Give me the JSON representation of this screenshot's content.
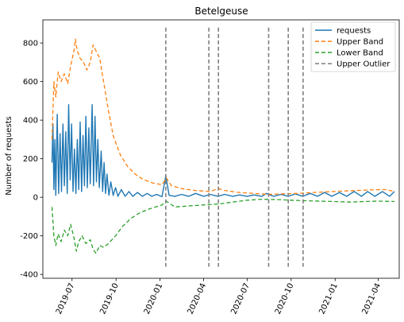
{
  "chart_data": {
    "type": "line",
    "title": "Betelgeuse",
    "xlabel": "",
    "ylabel": "Number of requests",
    "xlim": [
      "2019-05-01",
      "2021-05-15"
    ],
    "ylim": [
      -420,
      920
    ],
    "x_ticks": [
      "2019-07",
      "2019-10",
      "2020-01",
      "2020-04",
      "2020-07",
      "2020-10",
      "2021-01",
      "2021-04"
    ],
    "y_ticks": [
      -400,
      -200,
      0,
      200,
      400,
      600,
      800
    ],
    "legend_position": "top-right",
    "grid": false,
    "series": [
      {
        "name": "requests",
        "style": "solid",
        "color": "#1f77b4",
        "points": [
          [
            "2019-05-20",
            180
          ],
          [
            "2019-05-22",
            380
          ],
          [
            "2019-05-24",
            40
          ],
          [
            "2019-05-26",
            300
          ],
          [
            "2019-05-28",
            10
          ],
          [
            "2019-05-31",
            430
          ],
          [
            "2019-06-03",
            20
          ],
          [
            "2019-06-06",
            330
          ],
          [
            "2019-06-09",
            30
          ],
          [
            "2019-06-12",
            380
          ],
          [
            "2019-06-15",
            60
          ],
          [
            "2019-06-18",
            340
          ],
          [
            "2019-06-21",
            20
          ],
          [
            "2019-06-24",
            480
          ],
          [
            "2019-06-27",
            90
          ],
          [
            "2019-06-30",
            380
          ],
          [
            "2019-07-03",
            30
          ],
          [
            "2019-07-06",
            250
          ],
          [
            "2019-07-09",
            20
          ],
          [
            "2019-07-12",
            300
          ],
          [
            "2019-07-15",
            40
          ],
          [
            "2019-07-18",
            390
          ],
          [
            "2019-07-21",
            30
          ],
          [
            "2019-07-24",
            320
          ],
          [
            "2019-07-27",
            60
          ],
          [
            "2019-07-30",
            420
          ],
          [
            "2019-08-02",
            50
          ],
          [
            "2019-08-05",
            360
          ],
          [
            "2019-08-08",
            70
          ],
          [
            "2019-08-12",
            480
          ],
          [
            "2019-08-15",
            60
          ],
          [
            "2019-08-18",
            420
          ],
          [
            "2019-08-21",
            80
          ],
          [
            "2019-08-24",
            300
          ],
          [
            "2019-08-27",
            50
          ],
          [
            "2019-08-31",
            240
          ],
          [
            "2019-09-03",
            30
          ],
          [
            "2019-09-06",
            180
          ],
          [
            "2019-09-09",
            20
          ],
          [
            "2019-09-12",
            120
          ],
          [
            "2019-09-16",
            10
          ],
          [
            "2019-09-20",
            80
          ],
          [
            "2019-09-25",
            10
          ],
          [
            "2019-09-30",
            50
          ],
          [
            "2019-10-05",
            5
          ],
          [
            "2019-10-12",
            40
          ],
          [
            "2019-10-20",
            5
          ],
          [
            "2019-10-28",
            30
          ],
          [
            "2019-11-05",
            5
          ],
          [
            "2019-11-15",
            25
          ],
          [
            "2019-11-25",
            5
          ],
          [
            "2019-12-05",
            20
          ],
          [
            "2019-12-15",
            5
          ],
          [
            "2019-12-25",
            15
          ],
          [
            "2020-01-05",
            3
          ],
          [
            "2020-01-13",
            110
          ],
          [
            "2020-01-20",
            10
          ],
          [
            "2020-02-01",
            5
          ],
          [
            "2020-02-15",
            15
          ],
          [
            "2020-03-01",
            5
          ],
          [
            "2020-03-15",
            20
          ],
          [
            "2020-04-01",
            5
          ],
          [
            "2020-04-15",
            15
          ],
          [
            "2020-05-01",
            5
          ],
          [
            "2020-05-15",
            15
          ],
          [
            "2020-06-01",
            5
          ],
          [
            "2020-06-15",
            12
          ],
          [
            "2020-07-01",
            5
          ],
          [
            "2020-07-15",
            12
          ],
          [
            "2020-08-01",
            5
          ],
          [
            "2020-08-10",
            20
          ],
          [
            "2020-08-25",
            5
          ],
          [
            "2020-09-10",
            15
          ],
          [
            "2020-09-25",
            5
          ],
          [
            "2020-10-10",
            18
          ],
          [
            "2020-10-25",
            5
          ],
          [
            "2020-11-10",
            20
          ],
          [
            "2020-11-25",
            5
          ],
          [
            "2020-12-10",
            25
          ],
          [
            "2020-12-25",
            5
          ],
          [
            "2021-01-10",
            25
          ],
          [
            "2021-01-25",
            5
          ],
          [
            "2021-02-10",
            30
          ],
          [
            "2021-02-25",
            5
          ],
          [
            "2021-03-10",
            30
          ],
          [
            "2021-03-25",
            5
          ],
          [
            "2021-04-10",
            30
          ],
          [
            "2021-04-25",
            5
          ],
          [
            "2021-05-05",
            30
          ]
        ]
      },
      {
        "name": "Upper Band",
        "style": "dashed",
        "color": "#ff7f0e",
        "points": [
          [
            "2019-05-20",
            300
          ],
          [
            "2019-05-24",
            600
          ],
          [
            "2019-05-28",
            520
          ],
          [
            "2019-06-02",
            650
          ],
          [
            "2019-06-08",
            600
          ],
          [
            "2019-06-15",
            640
          ],
          [
            "2019-06-22",
            590
          ],
          [
            "2019-06-28",
            680
          ],
          [
            "2019-07-05",
            760
          ],
          [
            "2019-07-08",
            820
          ],
          [
            "2019-07-12",
            760
          ],
          [
            "2019-07-18",
            720
          ],
          [
            "2019-07-25",
            700
          ],
          [
            "2019-08-01",
            660
          ],
          [
            "2019-08-08",
            700
          ],
          [
            "2019-08-14",
            790
          ],
          [
            "2019-08-20",
            760
          ],
          [
            "2019-08-28",
            720
          ],
          [
            "2019-09-05",
            600
          ],
          [
            "2019-09-15",
            450
          ],
          [
            "2019-09-25",
            320
          ],
          [
            "2019-10-10",
            220
          ],
          [
            "2019-10-25",
            160
          ],
          [
            "2019-11-10",
            120
          ],
          [
            "2019-11-25",
            95
          ],
          [
            "2019-12-15",
            75
          ],
          [
            "2020-01-05",
            65
          ],
          [
            "2020-01-14",
            100
          ],
          [
            "2020-01-25",
            60
          ],
          [
            "2020-02-15",
            45
          ],
          [
            "2020-03-15",
            35
          ],
          [
            "2020-04-15",
            30
          ],
          [
            "2020-05-01",
            45
          ],
          [
            "2020-05-15",
            35
          ],
          [
            "2020-06-15",
            25
          ],
          [
            "2020-07-15",
            20
          ],
          [
            "2020-08-15",
            15
          ],
          [
            "2020-09-15",
            18
          ],
          [
            "2020-10-15",
            20
          ],
          [
            "2020-11-15",
            25
          ],
          [
            "2020-12-15",
            28
          ],
          [
            "2021-01-15",
            32
          ],
          [
            "2021-02-15",
            35
          ],
          [
            "2021-03-15",
            38
          ],
          [
            "2021-04-15",
            40
          ],
          [
            "2021-05-05",
            30
          ]
        ]
      },
      {
        "name": "Lower Band",
        "style": "dashed",
        "color": "#2ca02c",
        "points": [
          [
            "2019-05-20",
            -50
          ],
          [
            "2019-05-24",
            -200
          ],
          [
            "2019-05-28",
            -250
          ],
          [
            "2019-06-02",
            -190
          ],
          [
            "2019-06-08",
            -230
          ],
          [
            "2019-06-15",
            -170
          ],
          [
            "2019-06-22",
            -200
          ],
          [
            "2019-06-28",
            -140
          ],
          [
            "2019-07-05",
            -210
          ],
          [
            "2019-07-10",
            -280
          ],
          [
            "2019-07-15",
            -230
          ],
          [
            "2019-07-22",
            -200
          ],
          [
            "2019-07-30",
            -240
          ],
          [
            "2019-08-08",
            -220
          ],
          [
            "2019-08-14",
            -270
          ],
          [
            "2019-08-20",
            -290
          ],
          [
            "2019-08-28",
            -250
          ],
          [
            "2019-09-05",
            -260
          ],
          [
            "2019-09-15",
            -240
          ],
          [
            "2019-09-30",
            -200
          ],
          [
            "2019-10-15",
            -150
          ],
          [
            "2019-11-01",
            -110
          ],
          [
            "2019-11-20",
            -80
          ],
          [
            "2019-12-10",
            -60
          ],
          [
            "2020-01-05",
            -40
          ],
          [
            "2020-01-14",
            -20
          ],
          [
            "2020-02-01",
            -50
          ],
          [
            "2020-03-01",
            -45
          ],
          [
            "2020-04-01",
            -40
          ],
          [
            "2020-05-01",
            -35
          ],
          [
            "2020-06-01",
            -25
          ],
          [
            "2020-07-01",
            -15
          ],
          [
            "2020-08-01",
            -10
          ],
          [
            "2020-09-01",
            -12
          ],
          [
            "2020-10-01",
            -15
          ],
          [
            "2020-11-01",
            -18
          ],
          [
            "2020-12-01",
            -20
          ],
          [
            "2021-01-01",
            -22
          ],
          [
            "2021-02-01",
            -25
          ],
          [
            "2021-03-01",
            -22
          ],
          [
            "2021-04-01",
            -20
          ],
          [
            "2021-05-05",
            -22
          ]
        ]
      },
      {
        "name": "Upper Outlier",
        "style": "dashed",
        "color": "#7f7f7f",
        "kind": "vlines",
        "ymin": -360,
        "ymax": 880,
        "x": [
          "2020-01-13",
          "2020-04-12",
          "2020-05-02",
          "2020-08-15",
          "2020-09-25",
          "2020-10-26"
        ]
      }
    ]
  }
}
